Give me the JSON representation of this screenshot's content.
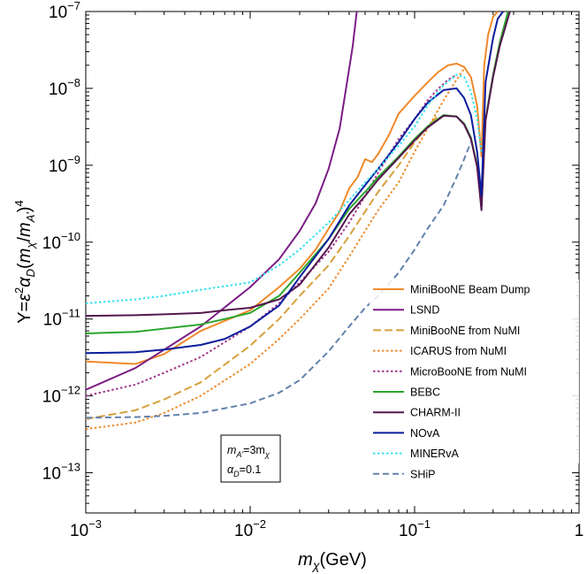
{
  "chart_data": {
    "type": "line",
    "x_scale": "log",
    "y_scale": "log",
    "xlim": [
      0.001,
      1
    ],
    "ylim": [
      3e-14,
      1e-07
    ],
    "xlabel": "m_χ(GeV)",
    "ylabel": "Y=ε²α_D(m_χ/m_A')⁴",
    "legend_position": "right",
    "grid": false,
    "x_ticks": [
      {
        "value": 0.001,
        "base": "10",
        "exp": "−3"
      },
      {
        "value": 0.01,
        "base": "10",
        "exp": "−2"
      },
      {
        "value": 0.1,
        "base": "10",
        "exp": "−1"
      },
      {
        "value": 1,
        "base": "1",
        "exp": ""
      }
    ],
    "y_ticks": [
      {
        "value": 1e-13,
        "base": "10",
        "exp": "−13"
      },
      {
        "value": 1e-12,
        "base": "10",
        "exp": "−12"
      },
      {
        "value": 1e-11,
        "base": "10",
        "exp": "−11"
      },
      {
        "value": 1e-10,
        "base": "10",
        "exp": "−10"
      },
      {
        "value": 1e-09,
        "base": "10",
        "exp": "−9"
      },
      {
        "value": 1e-08,
        "base": "10",
        "exp": "−8"
      },
      {
        "value": 1e-07,
        "base": "10",
        "exp": "−7"
      }
    ],
    "annotation": {
      "line1": {
        "base": "m",
        "sub1": "A'",
        "mid": "=3m",
        "sub2": "χ"
      },
      "line2": {
        "base": "α",
        "sub1": "D",
        "mid": "=0.1"
      }
    },
    "series": [
      {
        "name": "MiniBooNE Beam Dump",
        "color": "#f0892a",
        "dash": "solid",
        "x": [
          0.001,
          0.002,
          0.003,
          0.005,
          0.01,
          0.015,
          0.02,
          0.025,
          0.03,
          0.035,
          0.04,
          0.045,
          0.05,
          0.055,
          0.06,
          0.07,
          0.08,
          0.1,
          0.12,
          0.14,
          0.16,
          0.18,
          0.2,
          0.22,
          0.24,
          0.255,
          0.265,
          0.28,
          0.3,
          0.32
        ],
        "y": [
          2.8e-12,
          2.6e-12,
          3.5e-12,
          7e-12,
          1.3e-11,
          2.6e-11,
          4.5e-11,
          8e-11,
          1.5e-10,
          2.5e-10,
          5e-10,
          7e-10,
          1.2e-09,
          1.1e-09,
          1.4e-09,
          2.5e-09,
          4.7e-09,
          8e-09,
          1.2e-08,
          1.65e-08,
          2e-08,
          2.1e-08,
          1.9e-08,
          1.4e-08,
          6e-09,
          1.3e-09,
          2e-08,
          5e-08,
          8.5e-08,
          1e-07
        ]
      },
      {
        "name": "LSND",
        "color": "#7b1c85",
        "dash": "solid",
        "x": [
          0.001,
          0.002,
          0.003,
          0.005,
          0.01,
          0.015,
          0.02,
          0.025,
          0.03,
          0.035,
          0.04,
          0.042,
          0.0445
        ],
        "y": [
          1.2e-12,
          2.3e-12,
          4e-12,
          8e-12,
          2.6e-11,
          6e-11,
          1.4e-10,
          3.2e-10,
          9e-10,
          3e-09,
          1.8e-08,
          3.5e-08,
          1e-07
        ]
      },
      {
        "name": "MiniBooNE from NuMI",
        "color": "#d6a13a",
        "dash": "9,4",
        "x": [
          0.001,
          0.002,
          0.003,
          0.005,
          0.01,
          0.015,
          0.02,
          0.03,
          0.04,
          0.05,
          0.06,
          0.08,
          0.1,
          0.12,
          0.14
        ],
        "y": [
          5e-13,
          6.5e-13,
          9e-13,
          1.5e-12,
          4.5e-12,
          1e-11,
          2e-11,
          5e-11,
          1.2e-10,
          2.5e-10,
          4.5e-10,
          1e-09,
          2e-09,
          3.2e-09,
          4.5e-09
        ]
      },
      {
        "name": "ICARUS from NuMI",
        "color": "#ee8c2c",
        "dash": "2.5,2.5",
        "x": [
          0.001,
          0.002,
          0.003,
          0.005,
          0.01,
          0.015,
          0.02,
          0.03,
          0.04,
          0.05,
          0.06,
          0.08,
          0.1,
          0.12,
          0.15,
          0.18,
          0.2
        ],
        "y": [
          3.7e-13,
          4.5e-13,
          6e-13,
          1e-12,
          2.6e-12,
          5.5e-12,
          1e-11,
          2.5e-11,
          6.5e-11,
          1.4e-10,
          2.6e-10,
          6e-10,
          1.5e-09,
          3e-09,
          7e-09,
          1.3e-08,
          1.8e-08
        ]
      },
      {
        "name": "MicroBooNE from NuMI",
        "color": "#a2378c",
        "dash": "2.5,2.5",
        "x": [
          0.001,
          0.002,
          0.003,
          0.005,
          0.01,
          0.015,
          0.02,
          0.03,
          0.04,
          0.05,
          0.06,
          0.08,
          0.1,
          0.12,
          0.14,
          0.16,
          0.18
        ],
        "y": [
          1e-12,
          1.4e-12,
          2e-12,
          3.2e-12,
          8e-12,
          1.6e-11,
          3e-11,
          7.5e-11,
          1.8e-10,
          4e-10,
          8e-10,
          2.2e-09,
          4e-09,
          7e-09,
          1e-08,
          1.3e-08,
          1.5e-08
        ]
      },
      {
        "name": "BEBC",
        "color": "#2aa52a",
        "dash": "solid",
        "x": [
          0.001,
          0.002,
          0.003,
          0.005,
          0.007,
          0.01,
          0.015,
          0.02,
          0.03,
          0.04,
          0.05,
          0.06,
          0.08,
          0.1,
          0.12,
          0.15,
          0.18,
          0.2,
          0.22,
          0.24,
          0.255,
          0.27,
          0.3,
          0.33,
          0.37
        ],
        "y": [
          6.5e-12,
          6.8e-12,
          7.5e-12,
          8.5e-12,
          1e-11,
          1.2e-11,
          2e-11,
          4e-11,
          1.1e-10,
          2.7e-10,
          4.5e-10,
          7e-10,
          1.3e-09,
          2.2e-09,
          3.2e-09,
          4.5e-09,
          4.3e-09,
          3.5e-09,
          2.3e-09,
          1e-09,
          3e-10,
          4e-09,
          1.5e-08,
          4e-08,
          1e-07
        ]
      },
      {
        "name": "CHARM-II",
        "color": "#55174f",
        "dash": "solid",
        "x": [
          0.001,
          0.002,
          0.003,
          0.005,
          0.007,
          0.01,
          0.015,
          0.02,
          0.03,
          0.04,
          0.05,
          0.06,
          0.08,
          0.1,
          0.12,
          0.15,
          0.18,
          0.2,
          0.22,
          0.24,
          0.255,
          0.27,
          0.3,
          0.33,
          0.38
        ],
        "y": [
          1.1e-11,
          1.12e-11,
          1.15e-11,
          1.2e-11,
          1.3e-11,
          1.4e-11,
          1.8e-11,
          2.8e-11,
          8.5e-11,
          2.3e-10,
          4e-10,
          6.5e-10,
          1.25e-09,
          2.1e-09,
          3.1e-09,
          4.4e-09,
          4.3e-09,
          3.4e-09,
          2.2e-09,
          9.5e-10,
          2.6e-10,
          3.8e-09,
          1.4e-08,
          3.6e-08,
          1e-07
        ]
      },
      {
        "name": "NOvA",
        "color": "#0a1c9c",
        "dash": "solid",
        "x": [
          0.001,
          0.002,
          0.003,
          0.005,
          0.007,
          0.01,
          0.015,
          0.02,
          0.03,
          0.04,
          0.05,
          0.06,
          0.08,
          0.1,
          0.12,
          0.15,
          0.18,
          0.2,
          0.22,
          0.24,
          0.255,
          0.27,
          0.3,
          0.32,
          0.345
        ],
        "y": [
          3.6e-12,
          3.7e-12,
          4e-12,
          4.6e-12,
          5.5e-12,
          8e-12,
          1.5e-11,
          3.5e-11,
          1.1e-10,
          3e-10,
          5.5e-10,
          9e-10,
          2e-09,
          4e-09,
          6.5e-09,
          9.5e-09,
          1e-08,
          7.5e-09,
          4.5e-09,
          1.5e-09,
          4e-10,
          1.2e-08,
          4.5e-08,
          8e-08,
          1e-07
        ]
      },
      {
        "name": "MINERvA",
        "color": "#35e3f0",
        "dash": "2.5,2.5",
        "x": [
          0.001,
          0.002,
          0.003,
          0.005,
          0.01,
          0.015,
          0.02,
          0.03,
          0.04,
          0.05,
          0.06,
          0.08,
          0.1,
          0.12,
          0.15,
          0.18,
          0.2,
          0.22,
          0.24,
          0.255
        ],
        "y": [
          1.6e-11,
          1.8e-11,
          2e-11,
          2.4e-11,
          3e-11,
          5e-11,
          8e-11,
          1.8e-10,
          3.5e-10,
          6e-10,
          9e-10,
          1.8e-09,
          3.2e-09,
          6e-09,
          1.1e-08,
          1.5e-08,
          1.4e-08,
          9e-09,
          4e-09,
          1.5e-09
        ]
      },
      {
        "name": "SHiP",
        "color": "#6382ad",
        "dash": "7,4",
        "x": [
          0.001,
          0.002,
          0.003,
          0.005,
          0.01,
          0.015,
          0.02,
          0.03,
          0.04,
          0.05,
          0.06,
          0.08,
          0.1,
          0.12,
          0.15,
          0.18,
          0.2,
          0.22
        ],
        "y": [
          5.2e-13,
          5.3e-13,
          5.5e-13,
          6e-13,
          8e-13,
          1.1e-12,
          1.6e-12,
          3.8e-12,
          8e-12,
          1.4e-11,
          2e-11,
          4e-11,
          8e-11,
          1.5e-10,
          3e-10,
          7e-10,
          1.2e-09,
          2e-09
        ]
      }
    ]
  }
}
